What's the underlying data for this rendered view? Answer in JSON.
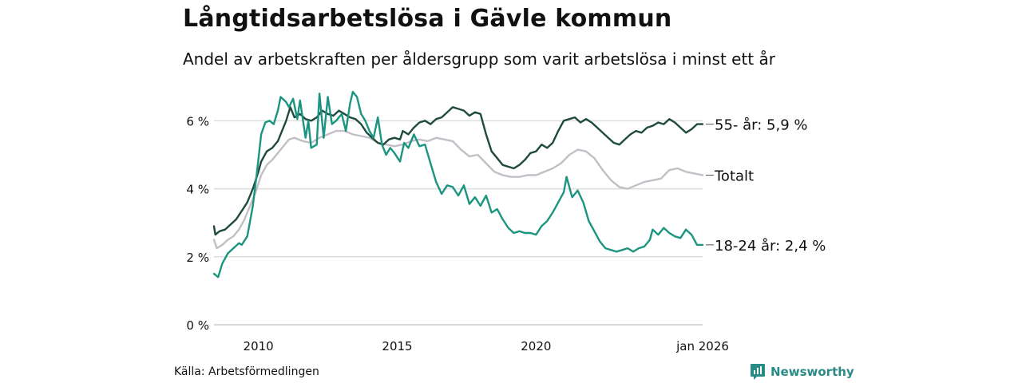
{
  "title": "Långtidsarbetslösa i Gävle kommun",
  "subtitle": "Andel av arbetskraften per åldersgrupp som varit arbetslösa i minst ett år",
  "source": "Källa: Arbetsförmedlingen",
  "brand": "Newsworthy",
  "colors": {
    "series_55": "#1f4a40",
    "series_total": "#c2bfc7",
    "series_18_24": "#1b9480",
    "grid": "#dddddd",
    "brand": "#2a8a86"
  },
  "chart_data": {
    "type": "line",
    "title": "Långtidsarbetslösa i Gävle kommun",
    "xlabel": "",
    "ylabel": "",
    "xlim": [
      2008.4,
      2026.0
    ],
    "ylim": [
      0,
      6.9
    ],
    "y_ticks": [
      0,
      2,
      4,
      6
    ],
    "y_tick_labels": [
      "0 %",
      "2 %",
      "4 %",
      "6 %"
    ],
    "x_ticks": [
      2010,
      2015,
      2020,
      2026.0
    ],
    "x_tick_labels": [
      "2010",
      "2015",
      "2020",
      "jan 2026"
    ],
    "grid": true,
    "series": [
      {
        "name": "55-",
        "label": "55- år: 5,9 %",
        "color": "#1f4a40",
        "points": [
          [
            2008.4,
            2.9
          ],
          [
            2008.45,
            2.65
          ],
          [
            2008.6,
            2.75
          ],
          [
            2008.8,
            2.8
          ],
          [
            2009.0,
            2.95
          ],
          [
            2009.2,
            3.1
          ],
          [
            2009.4,
            3.35
          ],
          [
            2009.6,
            3.6
          ],
          [
            2009.8,
            4.0
          ],
          [
            2010.0,
            4.5
          ],
          [
            2010.1,
            4.8
          ],
          [
            2010.3,
            5.1
          ],
          [
            2010.5,
            5.2
          ],
          [
            2010.7,
            5.4
          ],
          [
            2010.85,
            5.7
          ],
          [
            2011.0,
            6.0
          ],
          [
            2011.15,
            6.4
          ],
          [
            2011.3,
            6.1
          ],
          [
            2011.5,
            6.2
          ],
          [
            2011.7,
            6.05
          ],
          [
            2011.9,
            6.0
          ],
          [
            2012.1,
            6.1
          ],
          [
            2012.3,
            6.3
          ],
          [
            2012.5,
            6.2
          ],
          [
            2012.7,
            6.15
          ],
          [
            2012.9,
            6.3
          ],
          [
            2013.1,
            6.2
          ],
          [
            2013.3,
            6.1
          ],
          [
            2013.5,
            6.05
          ],
          [
            2013.7,
            5.9
          ],
          [
            2013.9,
            5.65
          ],
          [
            2014.1,
            5.5
          ],
          [
            2014.3,
            5.35
          ],
          [
            2014.5,
            5.3
          ],
          [
            2014.7,
            5.45
          ],
          [
            2014.9,
            5.5
          ],
          [
            2015.1,
            5.45
          ],
          [
            2015.2,
            5.7
          ],
          [
            2015.4,
            5.6
          ],
          [
            2015.6,
            5.8
          ],
          [
            2015.8,
            5.95
          ],
          [
            2016.0,
            6.0
          ],
          [
            2016.2,
            5.9
          ],
          [
            2016.4,
            6.05
          ],
          [
            2016.6,
            6.1
          ],
          [
            2016.8,
            6.25
          ],
          [
            2017.0,
            6.4
          ],
          [
            2017.2,
            6.35
          ],
          [
            2017.4,
            6.3
          ],
          [
            2017.6,
            6.15
          ],
          [
            2017.8,
            6.25
          ],
          [
            2018.0,
            6.2
          ],
          [
            2018.2,
            5.6
          ],
          [
            2018.4,
            5.1
          ],
          [
            2018.6,
            4.9
          ],
          [
            2018.8,
            4.7
          ],
          [
            2019.0,
            4.65
          ],
          [
            2019.2,
            4.6
          ],
          [
            2019.4,
            4.7
          ],
          [
            2019.6,
            4.85
          ],
          [
            2019.8,
            5.05
          ],
          [
            2020.0,
            5.1
          ],
          [
            2020.2,
            5.3
          ],
          [
            2020.4,
            5.2
          ],
          [
            2020.6,
            5.35
          ],
          [
            2020.8,
            5.7
          ],
          [
            2021.0,
            6.0
          ],
          [
            2021.2,
            6.05
          ],
          [
            2021.4,
            6.1
          ],
          [
            2021.6,
            5.95
          ],
          [
            2021.8,
            6.05
          ],
          [
            2022.0,
            5.95
          ],
          [
            2022.2,
            5.8
          ],
          [
            2022.4,
            5.65
          ],
          [
            2022.6,
            5.5
          ],
          [
            2022.8,
            5.35
          ],
          [
            2023.0,
            5.3
          ],
          [
            2023.2,
            5.45
          ],
          [
            2023.4,
            5.6
          ],
          [
            2023.6,
            5.7
          ],
          [
            2023.8,
            5.65
          ],
          [
            2024.0,
            5.8
          ],
          [
            2024.2,
            5.85
          ],
          [
            2024.4,
            5.95
          ],
          [
            2024.6,
            5.9
          ],
          [
            2024.8,
            6.05
          ],
          [
            2025.0,
            5.95
          ],
          [
            2025.2,
            5.8
          ],
          [
            2025.4,
            5.65
          ],
          [
            2025.6,
            5.75
          ],
          [
            2025.8,
            5.9
          ],
          [
            2026.0,
            5.9
          ]
        ]
      },
      {
        "name": "Totalt",
        "label": "Totalt",
        "color": "#c2bfc7",
        "points": [
          [
            2008.4,
            2.5
          ],
          [
            2008.5,
            2.25
          ],
          [
            2008.7,
            2.35
          ],
          [
            2008.9,
            2.5
          ],
          [
            2009.1,
            2.6
          ],
          [
            2009.3,
            2.8
          ],
          [
            2009.5,
            3.1
          ],
          [
            2009.7,
            3.5
          ],
          [
            2009.9,
            3.9
          ],
          [
            2010.1,
            4.4
          ],
          [
            2010.3,
            4.7
          ],
          [
            2010.5,
            4.85
          ],
          [
            2010.7,
            5.05
          ],
          [
            2010.9,
            5.25
          ],
          [
            2011.1,
            5.45
          ],
          [
            2011.3,
            5.5
          ],
          [
            2011.6,
            5.4
          ],
          [
            2011.9,
            5.35
          ],
          [
            2012.2,
            5.5
          ],
          [
            2012.5,
            5.6
          ],
          [
            2012.8,
            5.7
          ],
          [
            2013.1,
            5.7
          ],
          [
            2013.4,
            5.6
          ],
          [
            2013.7,
            5.55
          ],
          [
            2014.0,
            5.5
          ],
          [
            2014.3,
            5.35
          ],
          [
            2014.6,
            5.3
          ],
          [
            2014.9,
            5.25
          ],
          [
            2015.2,
            5.3
          ],
          [
            2015.5,
            5.4
          ],
          [
            2015.8,
            5.45
          ],
          [
            2016.1,
            5.4
          ],
          [
            2016.4,
            5.5
          ],
          [
            2016.7,
            5.45
          ],
          [
            2017.0,
            5.4
          ],
          [
            2017.3,
            5.15
          ],
          [
            2017.6,
            4.95
          ],
          [
            2017.9,
            5.0
          ],
          [
            2018.2,
            4.75
          ],
          [
            2018.5,
            4.5
          ],
          [
            2018.8,
            4.4
          ],
          [
            2019.1,
            4.35
          ],
          [
            2019.4,
            4.35
          ],
          [
            2019.7,
            4.4
          ],
          [
            2020.0,
            4.4
          ],
          [
            2020.3,
            4.5
          ],
          [
            2020.6,
            4.6
          ],
          [
            2020.9,
            4.75
          ],
          [
            2021.2,
            5.0
          ],
          [
            2021.5,
            5.15
          ],
          [
            2021.8,
            5.1
          ],
          [
            2022.1,
            4.9
          ],
          [
            2022.4,
            4.55
          ],
          [
            2022.7,
            4.25
          ],
          [
            2023.0,
            4.05
          ],
          [
            2023.3,
            4.0
          ],
          [
            2023.6,
            4.1
          ],
          [
            2023.9,
            4.2
          ],
          [
            2024.2,
            4.25
          ],
          [
            2024.5,
            4.3
          ],
          [
            2024.8,
            4.55
          ],
          [
            2025.1,
            4.6
          ],
          [
            2025.4,
            4.5
          ],
          [
            2025.7,
            4.45
          ],
          [
            2026.0,
            4.4
          ]
        ]
      },
      {
        "name": "18-24",
        "label": "18-24 år: 2,4 %",
        "color": "#1b9480",
        "points": [
          [
            2008.4,
            1.5
          ],
          [
            2008.55,
            1.4
          ],
          [
            2008.7,
            1.8
          ],
          [
            2008.9,
            2.1
          ],
          [
            2009.1,
            2.25
          ],
          [
            2009.3,
            2.4
          ],
          [
            2009.4,
            2.35
          ],
          [
            2009.6,
            2.6
          ],
          [
            2009.8,
            3.5
          ],
          [
            2009.95,
            4.5
          ],
          [
            2010.1,
            5.6
          ],
          [
            2010.25,
            5.95
          ],
          [
            2010.4,
            6.0
          ],
          [
            2010.55,
            5.9
          ],
          [
            2010.7,
            6.3
          ],
          [
            2010.8,
            6.7
          ],
          [
            2011.0,
            6.55
          ],
          [
            2011.1,
            6.4
          ],
          [
            2011.25,
            6.65
          ],
          [
            2011.4,
            6.05
          ],
          [
            2011.5,
            6.6
          ],
          [
            2011.7,
            5.5
          ],
          [
            2011.8,
            6.0
          ],
          [
            2011.9,
            5.2
          ],
          [
            2012.1,
            5.3
          ],
          [
            2012.2,
            6.8
          ],
          [
            2012.35,
            5.5
          ],
          [
            2012.5,
            6.7
          ],
          [
            2012.65,
            5.9
          ],
          [
            2012.8,
            6.0
          ],
          [
            2013.0,
            6.2
          ],
          [
            2013.15,
            5.7
          ],
          [
            2013.3,
            6.5
          ],
          [
            2013.4,
            6.85
          ],
          [
            2013.55,
            6.7
          ],
          [
            2013.7,
            6.2
          ],
          [
            2013.85,
            6.0
          ],
          [
            2014.0,
            5.7
          ],
          [
            2014.15,
            5.5
          ],
          [
            2014.3,
            6.1
          ],
          [
            2014.45,
            5.3
          ],
          [
            2014.6,
            5.0
          ],
          [
            2014.75,
            5.2
          ],
          [
            2014.9,
            5.05
          ],
          [
            2015.1,
            4.8
          ],
          [
            2015.25,
            5.35
          ],
          [
            2015.4,
            5.2
          ],
          [
            2015.6,
            5.6
          ],
          [
            2015.8,
            5.25
          ],
          [
            2016.0,
            5.3
          ],
          [
            2016.2,
            4.75
          ],
          [
            2016.4,
            4.2
          ],
          [
            2016.6,
            3.85
          ],
          [
            2016.8,
            4.1
          ],
          [
            2017.0,
            4.05
          ],
          [
            2017.2,
            3.8
          ],
          [
            2017.4,
            4.1
          ],
          [
            2017.6,
            3.55
          ],
          [
            2017.8,
            3.75
          ],
          [
            2018.0,
            3.5
          ],
          [
            2018.2,
            3.8
          ],
          [
            2018.4,
            3.3
          ],
          [
            2018.6,
            3.4
          ],
          [
            2018.8,
            3.1
          ],
          [
            2019.0,
            2.85
          ],
          [
            2019.2,
            2.7
          ],
          [
            2019.4,
            2.75
          ],
          [
            2019.6,
            2.7
          ],
          [
            2019.8,
            2.7
          ],
          [
            2020.0,
            2.65
          ],
          [
            2020.2,
            2.9
          ],
          [
            2020.4,
            3.05
          ],
          [
            2020.6,
            3.3
          ],
          [
            2020.8,
            3.6
          ],
          [
            2021.0,
            3.9
          ],
          [
            2021.1,
            4.35
          ],
          [
            2021.3,
            3.75
          ],
          [
            2021.5,
            3.95
          ],
          [
            2021.7,
            3.6
          ],
          [
            2021.9,
            3.05
          ],
          [
            2022.1,
            2.75
          ],
          [
            2022.3,
            2.45
          ],
          [
            2022.5,
            2.25
          ],
          [
            2022.7,
            2.2
          ],
          [
            2022.9,
            2.15
          ],
          [
            2023.1,
            2.2
          ],
          [
            2023.3,
            2.25
          ],
          [
            2023.5,
            2.15
          ],
          [
            2023.7,
            2.25
          ],
          [
            2023.9,
            2.3
          ],
          [
            2024.1,
            2.5
          ],
          [
            2024.2,
            2.8
          ],
          [
            2024.4,
            2.65
          ],
          [
            2024.6,
            2.85
          ],
          [
            2024.8,
            2.7
          ],
          [
            2025.0,
            2.6
          ],
          [
            2025.2,
            2.55
          ],
          [
            2025.4,
            2.8
          ],
          [
            2025.6,
            2.65
          ],
          [
            2025.8,
            2.35
          ],
          [
            2026.0,
            2.35
          ]
        ]
      }
    ]
  }
}
